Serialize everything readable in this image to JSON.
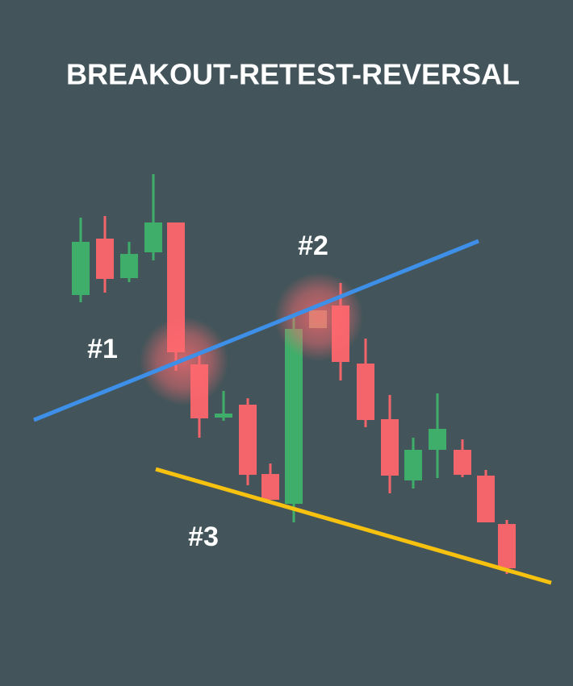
{
  "header": {
    "title": "BREAKOUT-RETEST-REVERSAL"
  },
  "labels": [
    "#1",
    "#2",
    "#3"
  ]
}
